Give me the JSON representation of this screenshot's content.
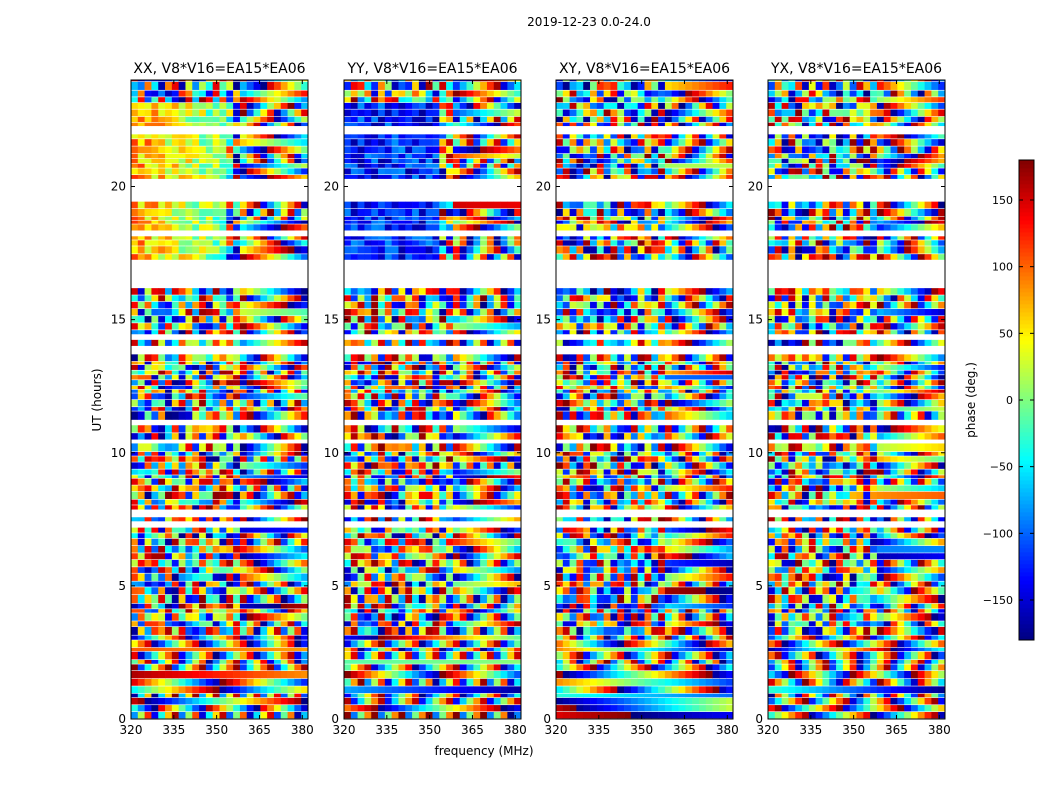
{
  "chart_data": {
    "type": "heatmap",
    "title": "2019-12-23 0.0-24.0",
    "xlabel": "frequency (MHz)",
    "ylabel": "UT (hours)",
    "xlim": [
      320,
      382
    ],
    "ylim": [
      0,
      24
    ],
    "xticks": [
      320,
      335,
      350,
      365,
      380
    ],
    "yticks": [
      0,
      5,
      10,
      15,
      20
    ],
    "panels": [
      {
        "title": "XX, V8*V16=EA15*EA06",
        "pol": "XX"
      },
      {
        "title": "YY, V8*V16=EA15*EA06",
        "pol": "YY"
      },
      {
        "title": "XY, V8*V16=EA15*EA06",
        "pol": "XY"
      },
      {
        "title": "YX, V8*V16=EA15*EA06",
        "pol": "YX"
      }
    ],
    "colorbar": {
      "label": "phase (deg.)",
      "range": [
        -180,
        180
      ],
      "ticks": [
        -150,
        -100,
        -50,
        0,
        50,
        100,
        150
      ],
      "tick_labels": [
        "−150",
        "−100",
        "−50",
        "0",
        "50",
        "100",
        "150"
      ],
      "colormap": "jet"
    },
    "data_gaps_ut_hours": [
      [
        17.3,
        16.2
      ],
      [
        20.2,
        19.3
      ],
      [
        11.3,
        11.0
      ],
      [
        10.5,
        10.3
      ],
      [
        7.9,
        7.6
      ],
      [
        14.0,
        13.8
      ]
    ]
  },
  "colors": {
    "axis": "#000000",
    "background": "#ffffff"
  }
}
